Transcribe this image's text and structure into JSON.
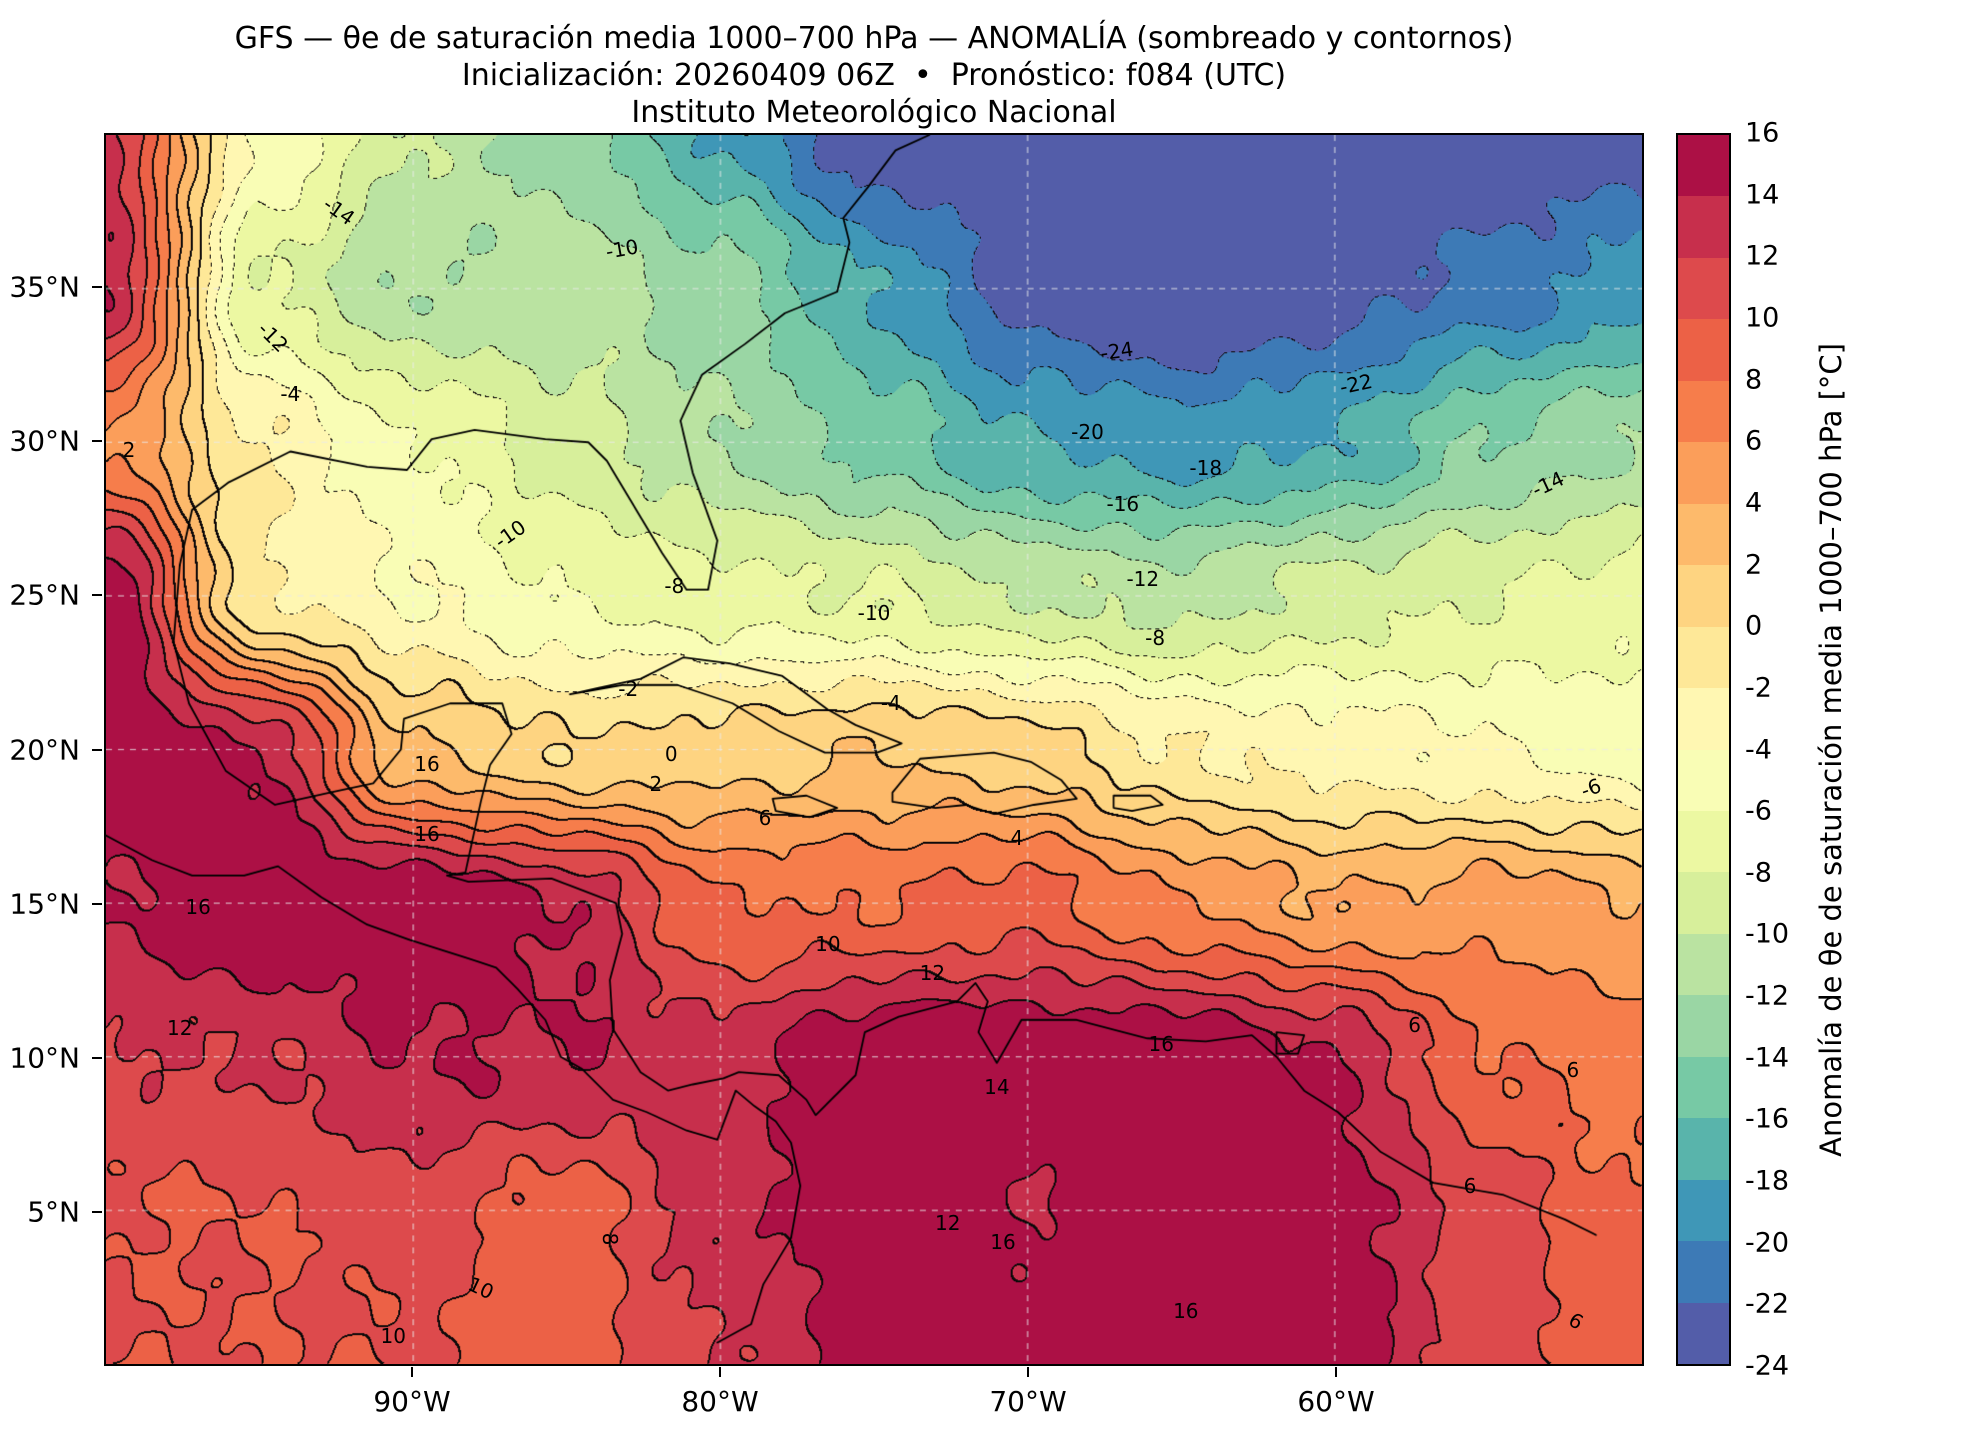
{
  "titles": {
    "line1": "GFS — θe de saturación media 1000–700 hPa — ANOMALÍA (sombreado y contornos)",
    "line2": "Inicialización: 20260409 06Z  •  Pronóstico: f084 (UTC)",
    "line3": "Instituto Meteorológico Nacional"
  },
  "axes": {
    "lon_range": [
      -100,
      -50
    ],
    "lat_range": [
      0,
      40
    ],
    "x_ticks": [
      {
        "label": "90°W",
        "lon": -90
      },
      {
        "label": "80°W",
        "lon": -80
      },
      {
        "label": "70°W",
        "lon": -70
      },
      {
        "label": "60°W",
        "lon": -60
      }
    ],
    "y_ticks": [
      {
        "label": "35°N",
        "lat": 35
      },
      {
        "label": "30°N",
        "lat": 30
      },
      {
        "label": "25°N",
        "lat": 25
      },
      {
        "label": "20°N",
        "lat": 20
      },
      {
        "label": "15°N",
        "lat": 15
      },
      {
        "label": "10°N",
        "lat": 10
      },
      {
        "label": "5°N",
        "lat": 5
      }
    ]
  },
  "colorbar": {
    "label": "Anomalía de θe de saturación media 1000–700 hPa [°C]",
    "min": -24,
    "max": 16,
    "step": 2,
    "ticks": [
      16,
      14,
      12,
      10,
      8,
      6,
      4,
      2,
      0,
      -2,
      -4,
      -6,
      -8,
      -10,
      -12,
      -14,
      -16,
      -18,
      -20,
      -22,
      -24
    ],
    "palette_anchors": [
      "#9e0142",
      "#d53e4f",
      "#f46d43",
      "#fdae61",
      "#fee08b",
      "#ffffbf",
      "#e6f598",
      "#abdda4",
      "#66c2a5",
      "#3288bd",
      "#5e4fa2"
    ]
  },
  "chart_data": {
    "type": "heatmap",
    "title": "GFS — θe de saturación media 1000–700 hPa — ANOMALÍA (sombreado y contornos)",
    "value_name": "Anomalía de θe de saturación media 1000–700 hPa",
    "units": "°C",
    "contour_interval": 2,
    "value_range": [
      -24,
      16
    ],
    "negative_contours": "dotted",
    "positive_contours": "solid",
    "lons": [
      -100,
      -95,
      -90,
      -85,
      -80,
      -75,
      -70,
      -65,
      -60,
      -55,
      -50
    ],
    "lats": [
      40,
      35,
      30,
      25,
      20,
      15,
      10,
      5,
      0
    ],
    "values": [
      [
        12,
        -4,
        -10,
        -13,
        -18,
        -24,
        -25,
        -25,
        -25,
        -24,
        -23
      ],
      [
        14,
        -8,
        -12,
        -11,
        -13,
        -18,
        -23,
        -25,
        -23,
        -21,
        -19
      ],
      [
        6,
        -2,
        -6,
        -9,
        -12,
        -15,
        -18,
        -19,
        -18,
        -14,
        -12
      ],
      [
        16,
        -2,
        -4,
        -6,
        -7,
        -8,
        -10,
        -11,
        -9,
        -8,
        -7
      ],
      [
        16,
        14,
        2,
        0,
        1,
        2,
        1,
        -2,
        -3,
        -4,
        -5
      ],
      [
        14,
        16,
        16,
        14,
        8,
        8,
        9,
        6,
        4,
        5,
        4
      ],
      [
        12,
        12,
        14,
        14,
        13,
        16,
        16,
        16,
        14,
        8,
        7
      ],
      [
        10,
        10,
        11,
        9,
        13,
        16,
        14,
        16,
        15,
        11,
        8
      ],
      [
        10,
        10,
        10,
        9,
        12,
        15,
        16,
        15,
        15,
        11,
        9
      ]
    ],
    "contour_labels": [
      {
        "text": "-24",
        "x": 65.8,
        "y": 17.6,
        "rot": -8
      },
      {
        "text": "-22",
        "x": 81.4,
        "y": 20.3,
        "rot": -12
      },
      {
        "text": "-20",
        "x": 63.9,
        "y": 24.2,
        "rot": 0
      },
      {
        "text": "-18",
        "x": 71.6,
        "y": 27.1,
        "rot": 0
      },
      {
        "text": "-16",
        "x": 66.2,
        "y": 30.0,
        "rot": 0
      },
      {
        "text": "-14",
        "x": 93.9,
        "y": 28.4,
        "rot": -25
      },
      {
        "text": "-12",
        "x": 67.5,
        "y": 36.1,
        "rot": 0
      },
      {
        "text": "-10",
        "x": 26.3,
        "y": 32.5,
        "rot": -35
      },
      {
        "text": "-8",
        "x": 37.0,
        "y": 36.7,
        "rot": 0
      },
      {
        "text": "-10",
        "x": 50.0,
        "y": 38.9,
        "rot": 0
      },
      {
        "text": "-8",
        "x": 68.3,
        "y": 40.9,
        "rot": 0
      },
      {
        "text": "-6",
        "x": 96.7,
        "y": 53.1,
        "rot": -20
      },
      {
        "text": "-4",
        "x": 12.0,
        "y": 21.1,
        "rot": 0
      },
      {
        "text": "-2",
        "x": 34.0,
        "y": 45.1,
        "rot": 0
      },
      {
        "text": "0",
        "x": 36.8,
        "y": 50.4,
        "rot": 0
      },
      {
        "text": "2",
        "x": 35.8,
        "y": 52.8,
        "rot": 0
      },
      {
        "text": "-4",
        "x": 51.1,
        "y": 46.2,
        "rot": 0
      },
      {
        "text": "4",
        "x": 59.3,
        "y": 57.2,
        "rot": 0
      },
      {
        "text": "6",
        "x": 42.9,
        "y": 55.6,
        "rot": 0
      },
      {
        "text": "16",
        "x": 20.9,
        "y": 51.2,
        "rot": 0
      },
      {
        "text": "16",
        "x": 20.9,
        "y": 56.9,
        "rot": 0
      },
      {
        "text": "16",
        "x": 6.0,
        "y": 62.8,
        "rot": 0
      },
      {
        "text": "10",
        "x": 47.0,
        "y": 65.8,
        "rot": 0
      },
      {
        "text": "12",
        "x": 53.8,
        "y": 68.2,
        "rot": 0
      },
      {
        "text": "12",
        "x": 4.8,
        "y": 72.7,
        "rot": 0
      },
      {
        "text": "-14",
        "x": 15.2,
        "y": 6.2,
        "rot": 35
      },
      {
        "text": "-12",
        "x": 10.9,
        "y": 16.4,
        "rot": 45
      },
      {
        "text": "-10",
        "x": 33.6,
        "y": 9.3,
        "rot": -10
      },
      {
        "text": "16",
        "x": 68.7,
        "y": 74.0,
        "rot": 0
      },
      {
        "text": "14",
        "x": 58.0,
        "y": 77.5,
        "rot": 0
      },
      {
        "text": "6",
        "x": 85.2,
        "y": 72.4,
        "rot": 0
      },
      {
        "text": "6",
        "x": 95.5,
        "y": 76.1,
        "rot": 0
      },
      {
        "text": "10",
        "x": 24.4,
        "y": 93.8,
        "rot": 25
      },
      {
        "text": "10",
        "x": 18.7,
        "y": 97.7,
        "rot": 0
      },
      {
        "text": "8",
        "x": 32.8,
        "y": 89.8,
        "rot": 90
      },
      {
        "text": "12",
        "x": 54.8,
        "y": 88.5,
        "rot": 0
      },
      {
        "text": "16",
        "x": 58.4,
        "y": 90.1,
        "rot": 0
      },
      {
        "text": "16",
        "x": 70.3,
        "y": 95.7,
        "rot": 0
      },
      {
        "text": "6",
        "x": 88.8,
        "y": 85.5,
        "rot": 0
      },
      {
        "text": "6",
        "x": 95.7,
        "y": 96.5,
        "rot": 30
      },
      {
        "text": "2",
        "x": 1.5,
        "y": 25.6,
        "rot": 0
      }
    ],
    "coastlines": [
      [
        [
          -97.6,
          26.0
        ],
        [
          -97.2,
          27.8
        ],
        [
          -96.0,
          28.7
        ],
        [
          -94.0,
          29.7
        ],
        [
          -91.5,
          29.2
        ],
        [
          -90.2,
          29.1
        ],
        [
          -89.4,
          30.1
        ],
        [
          -88.0,
          30.4
        ],
        [
          -85.7,
          30.1
        ],
        [
          -84.3,
          30.0
        ],
        [
          -83.7,
          29.4
        ],
        [
          -82.8,
          27.9
        ],
        [
          -81.9,
          26.4
        ],
        [
          -81.1,
          25.2
        ],
        [
          -80.4,
          25.2
        ],
        [
          -80.1,
          26.8
        ],
        [
          -80.9,
          29.0
        ],
        [
          -81.3,
          30.7
        ],
        [
          -80.6,
          32.2
        ],
        [
          -79.2,
          33.2
        ],
        [
          -77.9,
          34.2
        ],
        [
          -76.2,
          34.9
        ],
        [
          -75.8,
          36.5
        ],
        [
          -76.0,
          37.3
        ],
        [
          -75.2,
          38.3
        ],
        [
          -74.3,
          39.5
        ],
        [
          -73.2,
          40.0
        ]
      ],
      [
        [
          -97.6,
          26.0
        ],
        [
          -97.8,
          23.5
        ],
        [
          -97.3,
          21.5
        ],
        [
          -96.1,
          19.3
        ],
        [
          -94.5,
          18.2
        ],
        [
          -92.7,
          18.6
        ],
        [
          -91.3,
          18.9
        ],
        [
          -90.4,
          20.0
        ],
        [
          -90.3,
          21.0
        ],
        [
          -88.8,
          21.5
        ],
        [
          -87.1,
          21.5
        ],
        [
          -86.8,
          20.5
        ],
        [
          -87.5,
          19.5
        ],
        [
          -87.8,
          18.3
        ],
        [
          -88.3,
          16.0
        ],
        [
          -88.9,
          15.9
        ],
        [
          -88.2,
          15.7
        ],
        [
          -85.5,
          15.8
        ],
        [
          -83.4,
          15.0
        ],
        [
          -83.2,
          14.0
        ],
        [
          -83.6,
          12.5
        ],
        [
          -83.5,
          10.9
        ],
        [
          -82.6,
          9.5
        ],
        [
          -81.7,
          8.9
        ],
        [
          -80.9,
          9.1
        ],
        [
          -79.9,
          9.3
        ],
        [
          -79.4,
          9.5
        ],
        [
          -78.1,
          9.4
        ],
        [
          -77.2,
          8.6
        ],
        [
          -76.9,
          8.1
        ],
        [
          -75.6,
          9.4
        ],
        [
          -75.3,
          10.8
        ],
        [
          -74.2,
          11.3
        ],
        [
          -72.3,
          11.8
        ],
        [
          -71.7,
          12.4
        ],
        [
          -71.3,
          11.8
        ],
        [
          -71.6,
          10.8
        ],
        [
          -71.0,
          9.8
        ],
        [
          -70.2,
          11.2
        ],
        [
          -68.4,
          11.2
        ],
        [
          -66.1,
          10.6
        ],
        [
          -64.2,
          10.5
        ],
        [
          -62.7,
          10.7
        ],
        [
          -61.9,
          10.0
        ],
        [
          -61.0,
          8.9
        ],
        [
          -59.9,
          8.2
        ],
        [
          -58.5,
          6.9
        ],
        [
          -56.8,
          5.9
        ],
        [
          -54.5,
          5.5
        ],
        [
          -52.5,
          4.7
        ],
        [
          -51.5,
          4.2
        ]
      ],
      [
        [
          -100.0,
          17.2
        ],
        [
          -98.5,
          16.4
        ],
        [
          -97.2,
          15.9
        ],
        [
          -95.5,
          15.9
        ],
        [
          -94.4,
          16.2
        ],
        [
          -93.0,
          15.2
        ],
        [
          -91.5,
          14.3
        ],
        [
          -90.1,
          13.8
        ],
        [
          -88.2,
          13.2
        ],
        [
          -87.3,
          12.9
        ],
        [
          -86.6,
          12.2
        ],
        [
          -85.7,
          11.2
        ],
        [
          -85.2,
          10.0
        ],
        [
          -84.5,
          9.6
        ],
        [
          -83.5,
          8.6
        ],
        [
          -82.4,
          8.2
        ],
        [
          -81.1,
          7.6
        ],
        [
          -80.1,
          7.3
        ],
        [
          -79.5,
          8.9
        ],
        [
          -78.9,
          8.4
        ],
        [
          -78.2,
          7.9
        ],
        [
          -77.7,
          7.2
        ],
        [
          -77.4,
          5.8
        ],
        [
          -77.7,
          4.1
        ],
        [
          -78.6,
          2.6
        ],
        [
          -79.0,
          1.3
        ],
        [
          -80.1,
          0.7
        ]
      ],
      [
        [
          -84.9,
          21.8
        ],
        [
          -84.0,
          22.0
        ],
        [
          -82.6,
          22.3
        ],
        [
          -81.2,
          23.0
        ],
        [
          -79.7,
          22.8
        ],
        [
          -78.0,
          22.4
        ],
        [
          -76.5,
          21.3
        ],
        [
          -75.6,
          20.8
        ],
        [
          -74.1,
          20.2
        ],
        [
          -74.9,
          19.9
        ],
        [
          -76.6,
          19.9
        ],
        [
          -78.1,
          20.6
        ],
        [
          -79.6,
          21.5
        ],
        [
          -81.4,
          22.1
        ],
        [
          -83.2,
          22.1
        ],
        [
          -84.3,
          21.9
        ],
        [
          -84.9,
          21.8
        ]
      ],
      [
        [
          -74.4,
          18.6
        ],
        [
          -73.5,
          19.7
        ],
        [
          -72.3,
          19.8
        ],
        [
          -71.1,
          19.9
        ],
        [
          -69.9,
          19.6
        ],
        [
          -68.9,
          19.0
        ],
        [
          -68.4,
          18.4
        ],
        [
          -69.8,
          18.2
        ],
        [
          -71.1,
          17.9
        ],
        [
          -72.0,
          18.2
        ],
        [
          -73.0,
          18.1
        ],
        [
          -74.4,
          18.3
        ],
        [
          -74.4,
          18.6
        ]
      ],
      [
        [
          -78.3,
          18.4
        ],
        [
          -77.2,
          18.5
        ],
        [
          -76.2,
          18.1
        ],
        [
          -77.1,
          17.8
        ],
        [
          -78.2,
          18.0
        ],
        [
          -78.3,
          18.4
        ]
      ],
      [
        [
          -67.2,
          18.5
        ],
        [
          -66.0,
          18.5
        ],
        [
          -65.6,
          18.2
        ],
        [
          -66.6,
          18.0
        ],
        [
          -67.2,
          18.1
        ],
        [
          -67.2,
          18.5
        ]
      ],
      [
        [
          -61.9,
          10.8
        ],
        [
          -61.0,
          10.7
        ],
        [
          -61.2,
          10.1
        ],
        [
          -61.9,
          10.1
        ],
        [
          -61.9,
          10.8
        ]
      ]
    ]
  }
}
